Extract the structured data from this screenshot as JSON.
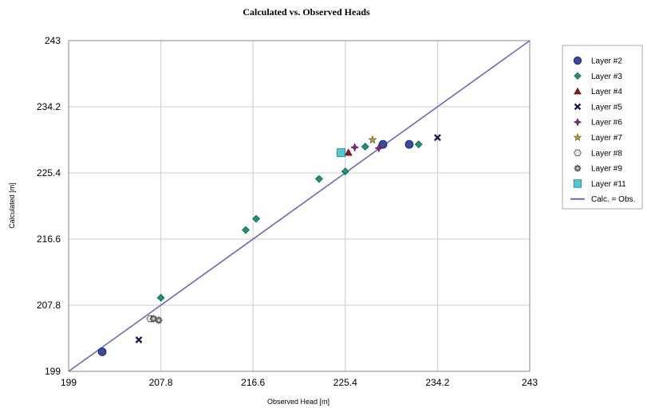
{
  "chart_data": {
    "type": "scatter",
    "title": "Calculated vs. Observed Heads",
    "xlabel": "Observed Head [m]",
    "ylabel": "Calculated [m]",
    "xlim": [
      199,
      243
    ],
    "ylim": [
      199,
      243
    ],
    "xticks": [
      "199",
      "207.8",
      "216.6",
      "225.4",
      "234.2",
      "243"
    ],
    "yticks": [
      "199",
      "207.8",
      "216.6",
      "225.4",
      "234.2",
      "243"
    ],
    "grid": true,
    "legend_position": "right",
    "series": [
      {
        "name": "Layer #2",
        "marker": "circle",
        "color": "#3a4a9c",
        "points": [
          [
            202.2,
            201.6
          ],
          [
            229.0,
            229.2
          ],
          [
            231.5,
            229.2
          ]
        ]
      },
      {
        "name": "Layer #3",
        "marker": "diamond",
        "color": "#1f8f7a",
        "points": [
          [
            207.8,
            208.8
          ],
          [
            215.9,
            217.8
          ],
          [
            216.9,
            219.3
          ],
          [
            222.9,
            224.6
          ],
          [
            225.4,
            225.6
          ],
          [
            227.3,
            228.9
          ],
          [
            232.4,
            229.2
          ]
        ]
      },
      {
        "name": "Layer #4",
        "marker": "triangle",
        "color": "#8b1a1a",
        "points": [
          [
            225.7,
            228.1
          ]
        ]
      },
      {
        "name": "Layer #5",
        "marker": "x",
        "color": "#1b1b4d",
        "points": [
          [
            205.7,
            203.2
          ],
          [
            234.2,
            230.1
          ]
        ]
      },
      {
        "name": "Layer #6",
        "marker": "plus4",
        "color": "#7a2a80",
        "points": [
          [
            226.3,
            228.8
          ],
          [
            228.6,
            228.7
          ]
        ]
      },
      {
        "name": "Layer #7",
        "marker": "star",
        "color": "#b8a028",
        "points": [
          [
            228.0,
            229.8
          ]
        ]
      },
      {
        "name": "Layer #8",
        "marker": "hexagon",
        "color": "#e6e6e6",
        "points": [
          [
            206.8,
            206.0
          ]
        ]
      },
      {
        "name": "Layer #9",
        "marker": "gear",
        "color": "#777777",
        "points": [
          [
            207.1,
            206.0
          ],
          [
            207.6,
            205.8
          ]
        ]
      },
      {
        "name": "Layer #11",
        "marker": "square",
        "color": "#4fc9d4",
        "points": [
          [
            225.0,
            228.1
          ]
        ]
      }
    ],
    "reference_line": {
      "name": "Calc. = Obs.",
      "color": "#6a6ab8",
      "from": [
        199,
        199
      ],
      "to": [
        243,
        243
      ]
    }
  }
}
